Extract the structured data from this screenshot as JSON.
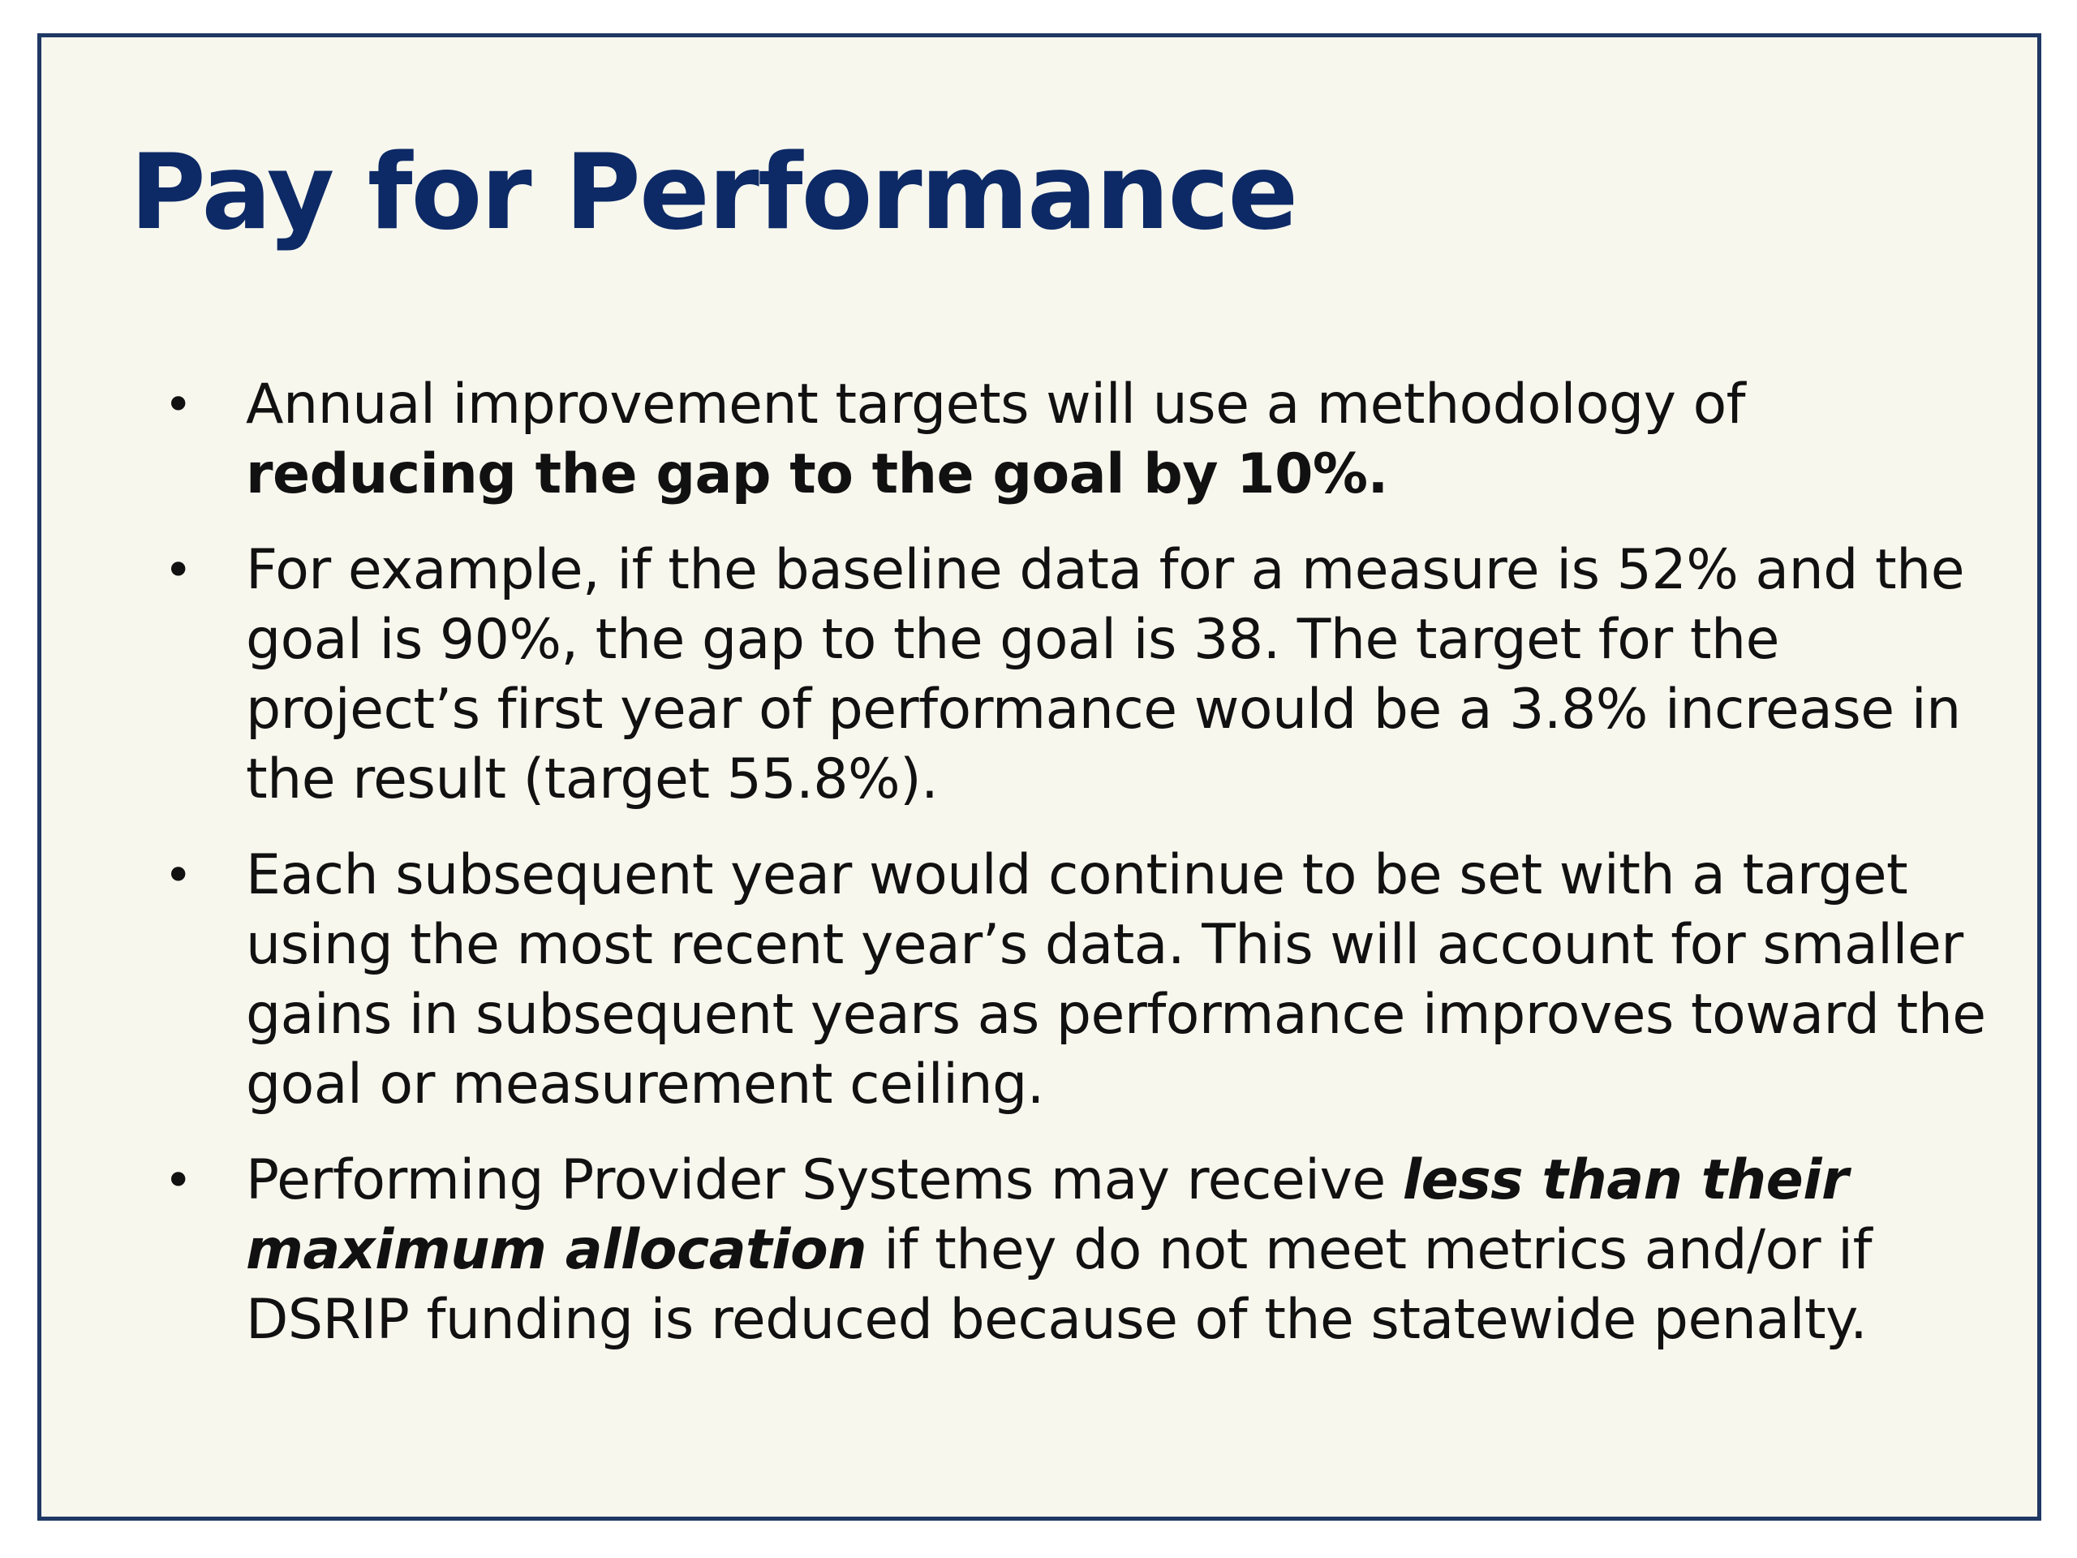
{
  "slide": {
    "title": "Pay for Performance",
    "bullet_symbol": "•",
    "bullets": [
      {
        "p1": "Annual improvement targets will use a methodology of ",
        "bold": "reducing the gap to the goal by 10%."
      },
      {
        "text": "For example, if the baseline data for a measure is 52% and the goal is 90%, the gap to the goal is 38. The target for the project’s first year of performance would be a 3.8% increase in the result (target 55.8%)."
      },
      {
        "text": "Each subsequent year would continue to be set with a target using the most recent year’s data. This will account for smaller gains in subsequent years as performance improves toward the goal or measurement ceiling."
      },
      {
        "p1": "Performing Provider Systems may receive ",
        "bold_italic": "less than their maximum allocation",
        "p2": " if they do not meet metrics and/or if DSRIP funding is reduced because of the statewide penalty."
      }
    ]
  }
}
